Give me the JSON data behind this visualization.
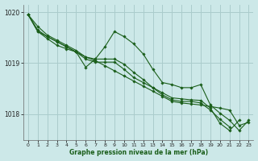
{
  "bg_color": "#cce8e8",
  "grid_color": "#aacccc",
  "line_color": "#1a5e1a",
  "marker_color": "#1a5e1a",
  "xlabel": "Graphe pression niveau de la mer (hPa)",
  "xlim": [
    -0.5,
    23.5
  ],
  "ylim": [
    1017.5,
    1020.15
  ],
  "yticks": [
    1018,
    1019,
    1020
  ],
  "xticks": [
    0,
    1,
    2,
    3,
    4,
    5,
    6,
    7,
    8,
    9,
    10,
    11,
    12,
    13,
    14,
    15,
    16,
    17,
    18,
    19,
    20,
    21,
    22,
    23
  ],
  "series": [
    [
      1019.95,
      1019.72,
      1019.55,
      1019.45,
      1019.35,
      1019.25,
      1019.12,
      1019.05,
      1018.95,
      1018.85,
      1018.75,
      1018.65,
      1018.55,
      1018.45,
      1018.35,
      1018.25,
      1018.22,
      1018.2,
      1018.18,
      1018.15,
      1018.12,
      1018.08,
      1017.78,
      1017.84
    ],
    [
      1019.95,
      1019.62,
      1019.48,
      1019.35,
      1019.28,
      1019.22,
      1018.92,
      1019.08,
      1019.32,
      1019.62,
      1019.52,
      1019.38,
      1019.18,
      1018.88,
      1018.62,
      1018.58,
      1018.52,
      1018.52,
      1018.58,
      1018.18,
      1018.02,
      1017.88,
      1017.68,
      1017.88
    ],
    [
      1019.95,
      1019.65,
      1019.52,
      1019.42,
      1019.32,
      1019.22,
      1019.08,
      1019.02,
      1019.02,
      1019.02,
      1018.88,
      1018.72,
      1018.62,
      1018.52,
      1018.42,
      1018.32,
      1018.3,
      1018.28,
      1018.27,
      1018.12,
      1017.82,
      1017.68,
      1017.88,
      null
    ],
    [
      1019.95,
      1019.62,
      1019.52,
      1019.42,
      1019.32,
      1019.22,
      1019.12,
      1019.08,
      1019.08,
      1019.08,
      1018.98,
      1018.82,
      1018.68,
      1018.52,
      1018.38,
      1018.28,
      1018.25,
      1018.25,
      1018.22,
      1018.08,
      1017.9,
      1017.75,
      null,
      null
    ]
  ]
}
